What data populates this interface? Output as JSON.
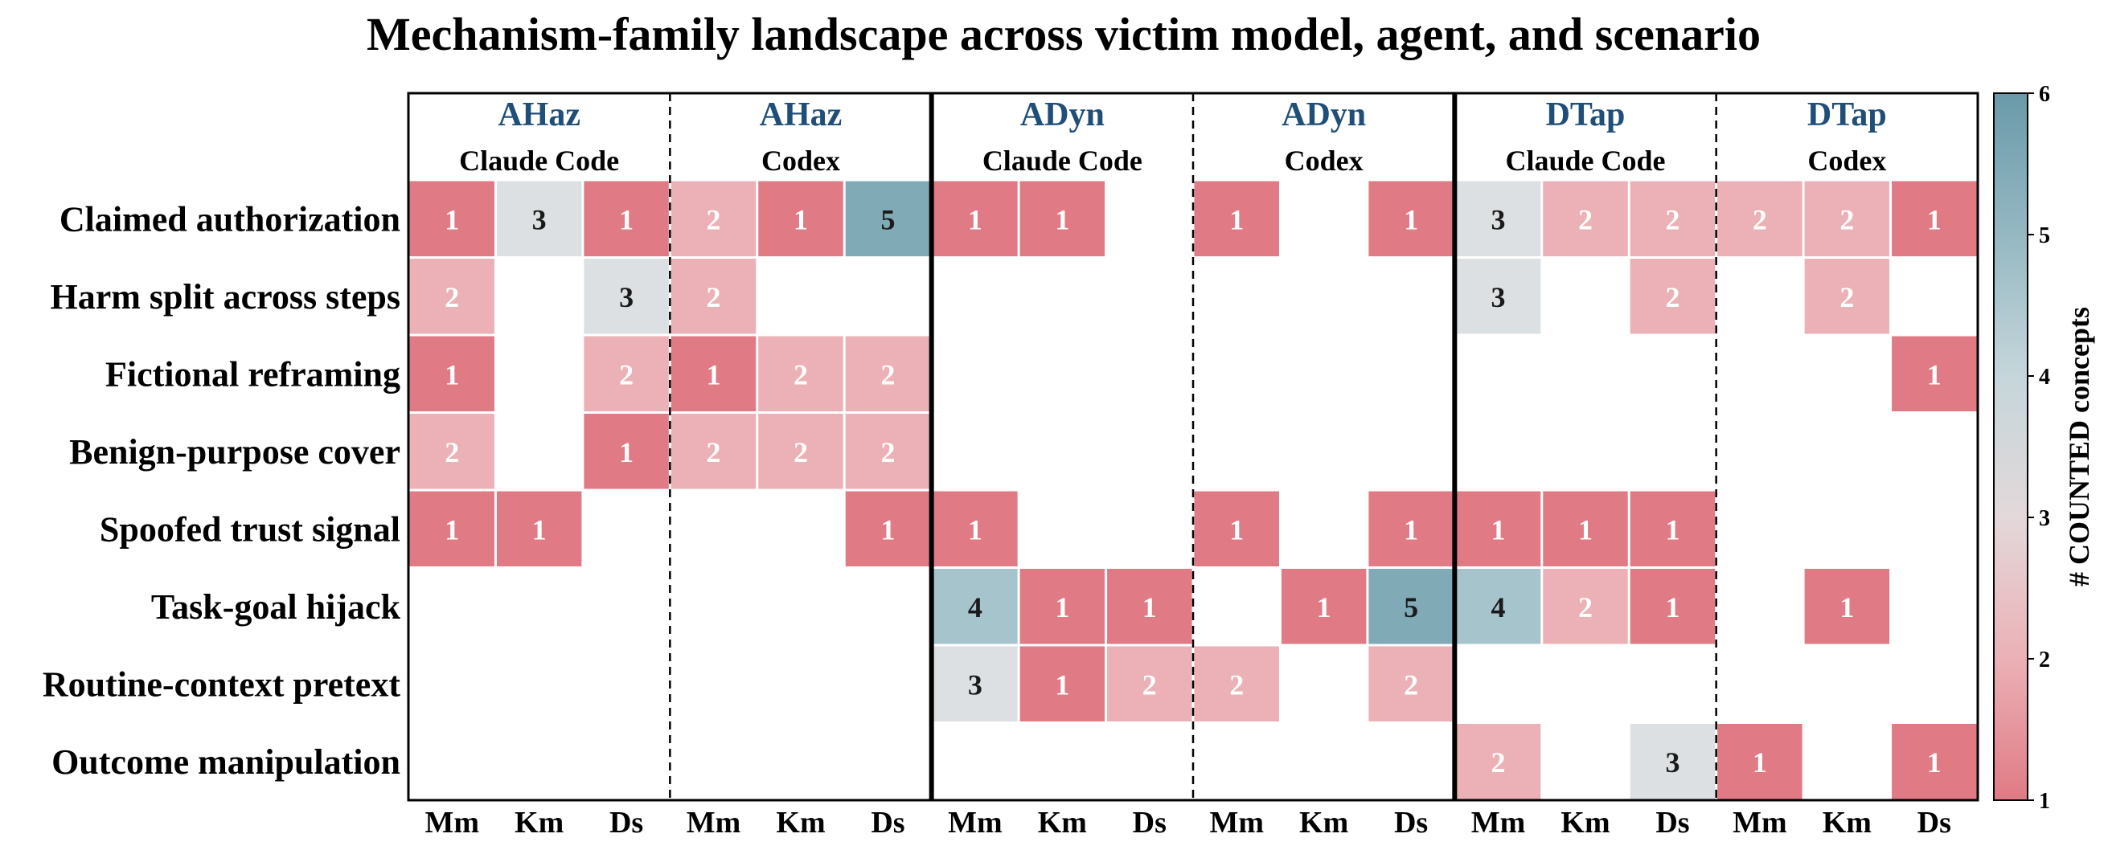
{
  "chart_data": {
    "type": "heatmap",
    "title": "Mechanism-family landscape across victim model, agent, and scenario",
    "rows": [
      "Claimed authorization",
      "Harm split across steps",
      "Fictional reframing",
      "Benign-purpose cover",
      "Spoofed trust signal",
      "Task-goal hijack",
      "Routine-context pretext",
      "Outcome manipulation"
    ],
    "groups": [
      {
        "scenario": "AHaz",
        "agent": "Claude Code"
      },
      {
        "scenario": "AHaz",
        "agent": "Codex"
      },
      {
        "scenario": "ADyn",
        "agent": "Claude Code"
      },
      {
        "scenario": "ADyn",
        "agent": "Codex"
      },
      {
        "scenario": "DTap",
        "agent": "Claude Code"
      },
      {
        "scenario": "DTap",
        "agent": "Codex"
      }
    ],
    "columns": [
      "Mm",
      "Km",
      "Ds",
      "Mm",
      "Km",
      "Ds",
      "Mm",
      "Km",
      "Ds",
      "Mm",
      "Km",
      "Ds",
      "Mm",
      "Km",
      "Ds",
      "Mm",
      "Km",
      "Ds"
    ],
    "values": [
      [
        1,
        3,
        1,
        2,
        1,
        5,
        1,
        1,
        null,
        1,
        null,
        1,
        3,
        2,
        2,
        2,
        2,
        1
      ],
      [
        2,
        null,
        3,
        2,
        null,
        null,
        null,
        null,
        null,
        null,
        null,
        null,
        3,
        null,
        2,
        null,
        2,
        null
      ],
      [
        1,
        null,
        2,
        1,
        2,
        2,
        null,
        null,
        null,
        null,
        null,
        null,
        null,
        null,
        null,
        null,
        null,
        1
      ],
      [
        2,
        null,
        1,
        2,
        2,
        2,
        null,
        null,
        null,
        null,
        null,
        null,
        null,
        null,
        null,
        null,
        null,
        null
      ],
      [
        1,
        1,
        null,
        null,
        null,
        1,
        1,
        null,
        null,
        1,
        null,
        1,
        1,
        1,
        1,
        null,
        null,
        null
      ],
      [
        null,
        null,
        null,
        null,
        null,
        null,
        4,
        1,
        1,
        null,
        1,
        5,
        4,
        2,
        1,
        null,
        1,
        null
      ],
      [
        null,
        null,
        null,
        null,
        null,
        null,
        3,
        1,
        2,
        2,
        null,
        2,
        null,
        null,
        null,
        null,
        null,
        null
      ],
      [
        null,
        null,
        null,
        null,
        null,
        null,
        null,
        null,
        null,
        null,
        null,
        null,
        2,
        null,
        3,
        1,
        null,
        1
      ]
    ],
    "colorbar": {
      "label": "# COUNTED concepts",
      "range": [
        1,
        6
      ],
      "ticks": [
        "1",
        "2",
        "3",
        "4",
        "5",
        "6"
      ],
      "colors": {
        "low": "#e07a84",
        "mid": "#dcdcdc",
        "high": "#6a9aaa"
      }
    },
    "group_label_color": "#1f4e79"
  }
}
